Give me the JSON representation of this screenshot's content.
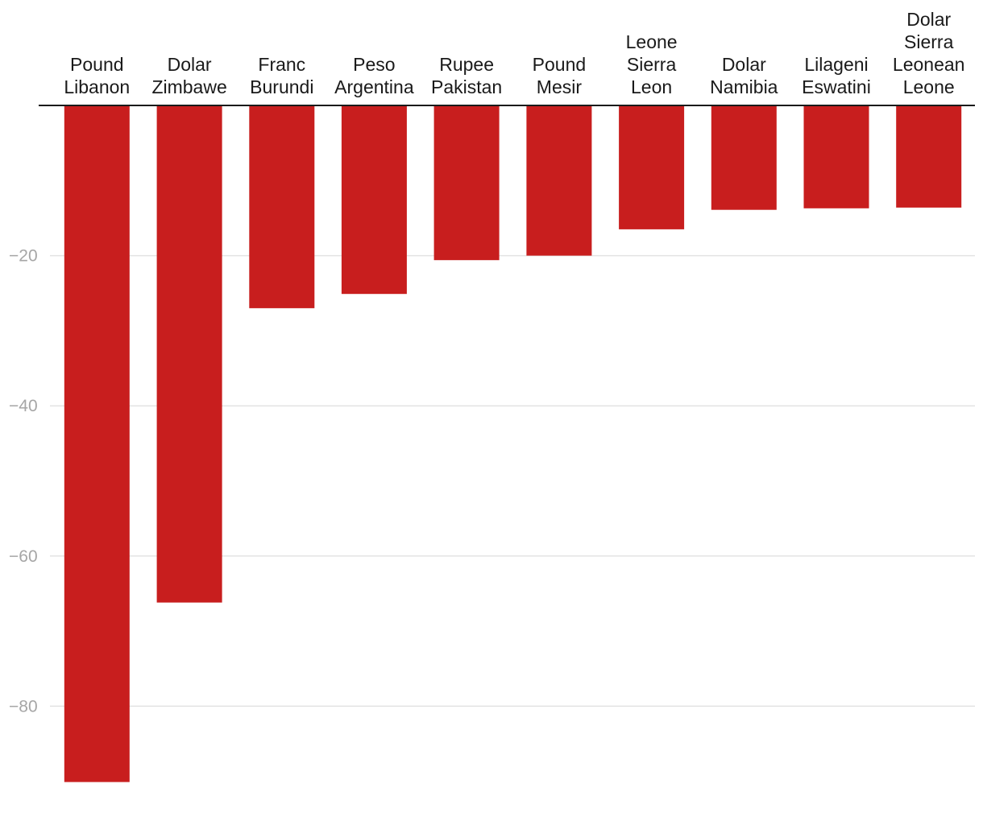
{
  "chart_data": {
    "type": "bar",
    "orientation": "vertical",
    "categories": [
      [
        "Pound",
        "Libanon"
      ],
      [
        "Dolar",
        "Zimbawe"
      ],
      [
        "Franc",
        "Burundi"
      ],
      [
        "Peso",
        "Argentina"
      ],
      [
        "Rupee",
        "Pakistan"
      ],
      [
        "Pound",
        "Mesir"
      ],
      [
        "Leone",
        "Sierra",
        "Leon"
      ],
      [
        "Dolar",
        "Namibia"
      ],
      [
        "Lilageni",
        "Eswatini"
      ],
      [
        "Dolar",
        "Sierra",
        "Leonean",
        "Leone"
      ]
    ],
    "values": [
      -90.1,
      -66.2,
      -27.0,
      -25.1,
      -20.6,
      -20.0,
      -16.5,
      -13.9,
      -13.7,
      -13.6
    ],
    "y_ticks": [
      -20,
      -40,
      -60,
      -80
    ],
    "y_tick_labels": [
      "−20",
      "−40",
      "−60",
      "−80"
    ],
    "ylim": [
      -92.7,
      0
    ],
    "category_labels_position": "top",
    "grid": true,
    "legend": "none",
    "colors": {
      "bar": "#c81e1e",
      "grid": "#e3e3e3",
      "axis": "#1a1a1a",
      "tick_text": "#a6a6a6",
      "label_text": "#1a1a1a"
    }
  }
}
